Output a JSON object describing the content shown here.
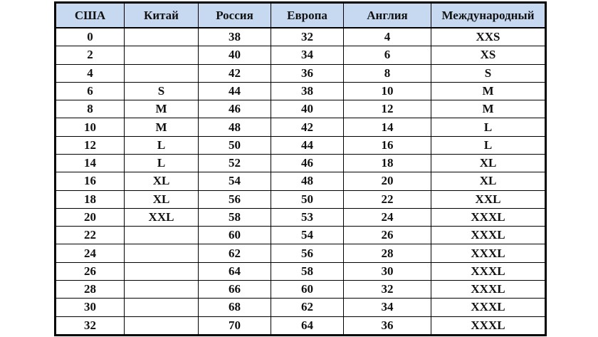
{
  "colors": {
    "header_bg": "#c6d9f0",
    "border": "#000000"
  },
  "headers": [
    "США",
    "Китай",
    "Россия",
    "Европа",
    "Англия",
    "Международный"
  ],
  "rows": [
    [
      "0",
      "",
      "38",
      "32",
      "4",
      "XXS"
    ],
    [
      "2",
      "",
      "40",
      "34",
      "6",
      "XS"
    ],
    [
      "4",
      "",
      "42",
      "36",
      "8",
      "S"
    ],
    [
      "6",
      "S",
      "44",
      "38",
      "10",
      "M"
    ],
    [
      "8",
      "M",
      "46",
      "40",
      "12",
      "M"
    ],
    [
      "10",
      "M",
      "48",
      "42",
      "14",
      "L"
    ],
    [
      "12",
      "L",
      "50",
      "44",
      "16",
      "L"
    ],
    [
      "14",
      "L",
      "52",
      "46",
      "18",
      "XL"
    ],
    [
      "16",
      "XL",
      "54",
      "48",
      "20",
      "XL"
    ],
    [
      "18",
      "XL",
      "56",
      "50",
      "22",
      "XXL"
    ],
    [
      "20",
      "XXL",
      "58",
      "53",
      "24",
      "XXXL"
    ],
    [
      "22",
      "",
      "60",
      "54",
      "26",
      "XXXL"
    ],
    [
      "24",
      "",
      "62",
      "56",
      "28",
      "XXXL"
    ],
    [
      "26",
      "",
      "64",
      "58",
      "30",
      "XXXL"
    ],
    [
      "28",
      "",
      "66",
      "60",
      "32",
      "XXXL"
    ],
    [
      "30",
      "",
      "68",
      "62",
      "34",
      "XXXL"
    ],
    [
      "32",
      "",
      "70",
      "64",
      "36",
      "XXXL"
    ]
  ]
}
